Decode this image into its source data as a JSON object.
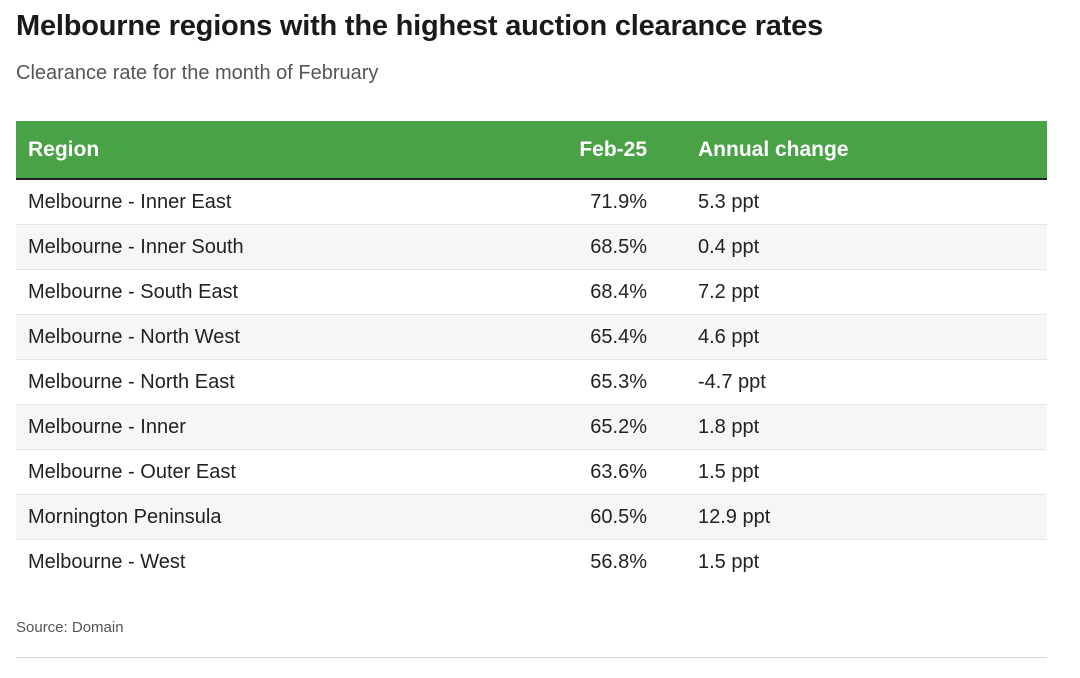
{
  "title": "Melbourne regions with the highest auction clearance rates",
  "subtitle": "Clearance rate for the month of February",
  "source": "Source: Domain",
  "colors": {
    "header_background": "#4aa247",
    "header_text": "#ffffff",
    "row_alt_background": "#f6f6f6"
  },
  "chart_data": {
    "type": "table",
    "title": "Melbourne regions with the highest auction clearance rates",
    "subtitle": "Clearance rate for the month of February",
    "columns": [
      "Region",
      "Feb-25",
      "Annual change"
    ],
    "rows": [
      {
        "region": "Melbourne - Inner East",
        "value": "71.9%",
        "change": "5.3 ppt"
      },
      {
        "region": "Melbourne - Inner South",
        "value": "68.5%",
        "change": "0.4 ppt"
      },
      {
        "region": "Melbourne - South East",
        "value": "68.4%",
        "change": "7.2 ppt"
      },
      {
        "region": "Melbourne - North West",
        "value": "65.4%",
        "change": "4.6 ppt"
      },
      {
        "region": "Melbourne - North East",
        "value": "65.3%",
        "change": "-4.7 ppt"
      },
      {
        "region": "Melbourne - Inner",
        "value": "65.2%",
        "change": "1.8 ppt"
      },
      {
        "region": "Melbourne - Outer East",
        "value": "63.6%",
        "change": "1.5 ppt"
      },
      {
        "region": "Mornington Peninsula",
        "value": "60.5%",
        "change": "12.9 ppt"
      },
      {
        "region": "Melbourne - West",
        "value": "56.8%",
        "change": "1.5 ppt"
      }
    ],
    "source": "Source: Domain"
  }
}
